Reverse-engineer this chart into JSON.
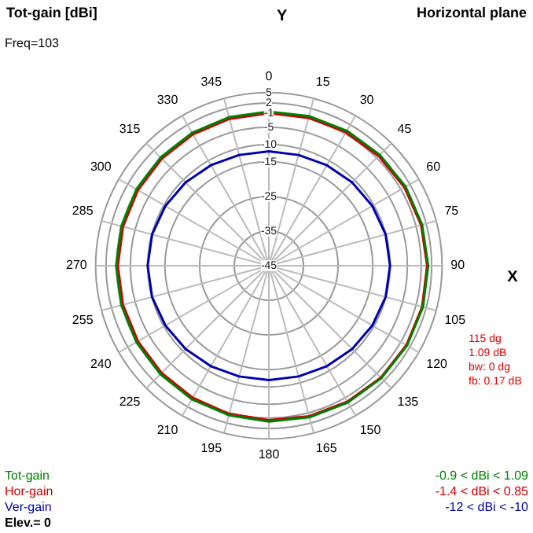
{
  "chart_data": {
    "type": "radar",
    "title": "Tot-gain [dBi]",
    "subtitle": "Horizontal plane",
    "xlabel": "X",
    "ylabel": "Y",
    "categories": [
      "0",
      "15",
      "30",
      "45",
      "60",
      "75",
      "90",
      "105",
      "120",
      "135",
      "150",
      "165",
      "180",
      "195",
      "210",
      "225",
      "240",
      "255",
      "270",
      "285",
      "300",
      "315",
      "330",
      "345"
    ],
    "series": [
      {
        "name": "Tot-gain",
        "color": "#008000",
        "values": [
          -0.5,
          -0.3,
          0,
          0.3,
          0.6,
          0.8,
          1.0,
          1.07,
          1.08,
          0.9,
          0.6,
          0.3,
          0,
          -0.3,
          -0.5,
          -0.7,
          -0.85,
          -0.9,
          -0.9,
          -0.9,
          -0.85,
          -0.8,
          -0.7,
          -0.6
        ]
      },
      {
        "name": "Hor-gain",
        "color": "#d00000",
        "values": [
          -1.0,
          -0.8,
          -0.5,
          -0.2,
          0.2,
          0.5,
          0.7,
          0.82,
          0.85,
          0.7,
          0.3,
          0,
          -0.4,
          -0.7,
          -1.0,
          -1.2,
          -1.35,
          -1.4,
          -1.4,
          -1.4,
          -1.35,
          -1.3,
          -1.2,
          -1.1
        ]
      },
      {
        "name": "Ver-gain",
        "color": "#0000b0",
        "values": [
          -12,
          -11.9,
          -11.5,
          -11,
          -10.5,
          -10.1,
          -10,
          -10.1,
          -10.5,
          -11,
          -11.5,
          -11.9,
          -12,
          -11.9,
          -11.5,
          -11,
          -10.5,
          -10.1,
          -10,
          -10.1,
          -10.5,
          -11,
          -11.5,
          -11.9
        ]
      }
    ],
    "ylim": [
      -45,
      5
    ],
    "yticks": [
      5,
      2,
      -1,
      -5,
      -10,
      -15,
      -25,
      -35,
      -45
    ],
    "grid": true,
    "legend": "bottom left",
    "marker": "none",
    "line_style": "solid",
    "annotations": [
      "Freq=103",
      "-0.9 < dBi < 1.09",
      "-1.4 < dBi < 0.85",
      "-12 < dBi < -10",
      "Elev.= 0",
      "115 dg",
      "1.09 dB",
      "bw: 0 dg",
      "fb: 0.17 dB"
    ]
  }
}
